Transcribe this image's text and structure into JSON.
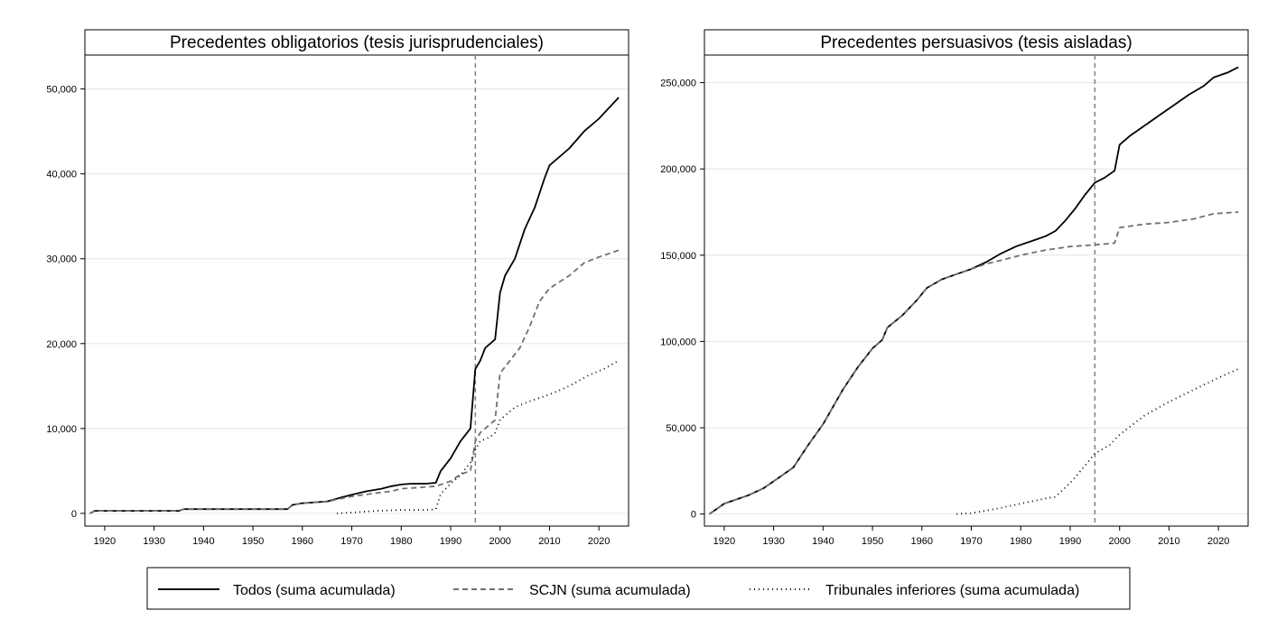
{
  "legend": {
    "items": [
      {
        "key": "todos",
        "label": "Todos (suma acumulada)"
      },
      {
        "key": "scjn",
        "label": "SCJN (suma acumulada)"
      },
      {
        "key": "tribunales",
        "label": "Tribunales inferiores (suma acumulada)"
      }
    ]
  },
  "chart_data": [
    {
      "type": "line",
      "title": "Precedentes obligatorios (tesis jurisprudenciales)",
      "xlabel": "",
      "ylabel": "",
      "xlim": [
        1916,
        2026
      ],
      "ylim": [
        -1500,
        54000
      ],
      "x_ticks": [
        1920,
        1930,
        1940,
        1950,
        1960,
        1970,
        1980,
        1990,
        2000,
        2010,
        2020
      ],
      "y_ticks": [
        0,
        10000,
        20000,
        30000,
        40000,
        50000
      ],
      "y_tick_labels": [
        "0",
        "10,000",
        "20,000",
        "30,000",
        "40,000",
        "50,000"
      ],
      "grid": true,
      "reference_line_x": 1995,
      "series": [
        {
          "name": "Todos (suma acumulada)",
          "style": "solid",
          "color": "#000000",
          "x": [
            1917,
            1918,
            1935,
            1936,
            1957,
            1958,
            1960,
            1965,
            1968,
            1970,
            1973,
            1976,
            1978,
            1979,
            1980,
            1982,
            1985,
            1987,
            1988,
            1990,
            1992,
            1994,
            1995,
            1996,
            1997,
            1998,
            1999,
            2000,
            2001,
            2003,
            2005,
            2007,
            2009,
            2010,
            2014,
            2017,
            2020,
            2024
          ],
          "y": [
            0,
            300,
            300,
            500,
            500,
            1000,
            1200,
            1400,
            1900,
            2200,
            2600,
            2900,
            3200,
            3300,
            3400,
            3500,
            3500,
            3600,
            5000,
            6500,
            8500,
            10000,
            17000,
            18000,
            19500,
            20000,
            20500,
            26000,
            28000,
            30000,
            33500,
            36000,
            39500,
            41000,
            43000,
            45000,
            46500,
            49000
          ]
        },
        {
          "name": "SCJN (suma acumulada)",
          "style": "dashed",
          "color": "#707070",
          "x": [
            1917,
            1918,
            1935,
            1936,
            1957,
            1958,
            1960,
            1965,
            1970,
            1975,
            1978,
            1980,
            1985,
            1987,
            1990,
            1992,
            1994,
            1995,
            1996,
            1998,
            1999,
            2000,
            2002,
            2004,
            2006,
            2008,
            2010,
            2014,
            2017,
            2020,
            2024
          ],
          "y": [
            0,
            300,
            300,
            500,
            500,
            1000,
            1200,
            1400,
            2000,
            2400,
            2600,
            2900,
            3100,
            3200,
            3800,
            4600,
            5000,
            8500,
            9500,
            10500,
            11000,
            16500,
            18000,
            19500,
            22000,
            25000,
            26500,
            28000,
            29500,
            30200,
            31000
          ]
        },
        {
          "name": "Tribunales inferiores (suma acumulada)",
          "style": "dotted",
          "color": "#000000",
          "x": [
            1967,
            1970,
            1975,
            1980,
            1985,
            1987,
            1988,
            1990,
            1992,
            1994,
            1995,
            1996,
            1998,
            1999,
            2000,
            2003,
            2006,
            2010,
            2014,
            2018,
            2021,
            2024
          ],
          "y": [
            0,
            100,
            300,
            400,
            400,
            500,
            2300,
            3500,
            4500,
            6000,
            7500,
            8500,
            9000,
            9500,
            11000,
            12500,
            13200,
            14000,
            15000,
            16300,
            17000,
            18000
          ]
        }
      ]
    },
    {
      "type": "line",
      "title": "Precedentes persuasivos (tesis aisladas)",
      "xlabel": "",
      "ylabel": "",
      "xlim": [
        1916,
        2026
      ],
      "ylim": [
        -7000,
        266000
      ],
      "x_ticks": [
        1920,
        1930,
        1940,
        1950,
        1960,
        1970,
        1980,
        1990,
        2000,
        2010,
        2020
      ],
      "y_ticks": [
        0,
        50000,
        100000,
        150000,
        200000,
        250000
      ],
      "y_tick_labels": [
        "0",
        "50,000",
        "100,000",
        "150,000",
        "200,000",
        "250,000"
      ],
      "grid": true,
      "reference_line_x": 1995,
      "series": [
        {
          "name": "Todos (suma acumulada)",
          "style": "solid",
          "color": "#000000",
          "x": [
            1917,
            1920,
            1925,
            1928,
            1931,
            1934,
            1937,
            1940,
            1944,
            1947,
            1950,
            1952,
            1953,
            1956,
            1959,
            1961,
            1964,
            1967,
            1970,
            1973,
            1976,
            1979,
            1981,
            1983,
            1985,
            1987,
            1989,
            1991,
            1993,
            1995,
            1997,
            1999,
            2000,
            2002,
            2005,
            2008,
            2011,
            2014,
            2017,
            2019,
            2022,
            2024
          ],
          "y": [
            0,
            6000,
            11000,
            15000,
            21000,
            27000,
            40000,
            52000,
            72000,
            85000,
            96000,
            101000,
            108000,
            115000,
            124000,
            131000,
            136000,
            139000,
            142000,
            146000,
            151000,
            155000,
            157000,
            159000,
            161000,
            164000,
            170000,
            177000,
            185000,
            192000,
            195000,
            199000,
            214000,
            219000,
            225000,
            231000,
            237000,
            243000,
            248000,
            253000,
            256000,
            259000
          ]
        },
        {
          "name": "SCJN (suma acumulada)",
          "style": "dashed",
          "color": "#707070",
          "x": [
            1917,
            1920,
            1925,
            1928,
            1931,
            1934,
            1937,
            1940,
            1944,
            1947,
            1950,
            1952,
            1953,
            1956,
            1959,
            1961,
            1964,
            1967,
            1970,
            1973,
            1976,
            1980,
            1985,
            1990,
            1995,
            1999,
            2000,
            2005,
            2010,
            2015,
            2019,
            2024
          ],
          "y": [
            0,
            6000,
            11000,
            15000,
            21000,
            27000,
            40000,
            52000,
            72000,
            85000,
            96000,
            101000,
            108000,
            115000,
            124000,
            131000,
            136000,
            139000,
            142000,
            145000,
            147000,
            150000,
            153000,
            155000,
            156000,
            157000,
            166000,
            168000,
            169000,
            171000,
            174000,
            175000
          ]
        },
        {
          "name": "Tribunales inferiores (suma acumulada)",
          "style": "dotted",
          "color": "#000000",
          "x": [
            1967,
            1970,
            1975,
            1980,
            1985,
            1987,
            1990,
            1993,
            1995,
            1998,
            2000,
            2005,
            2010,
            2015,
            2020,
            2024
          ],
          "y": [
            0,
            500,
            3000,
            6000,
            9000,
            10000,
            18000,
            28000,
            35000,
            40000,
            46000,
            57000,
            65000,
            72000,
            79000,
            84000
          ]
        }
      ]
    }
  ]
}
